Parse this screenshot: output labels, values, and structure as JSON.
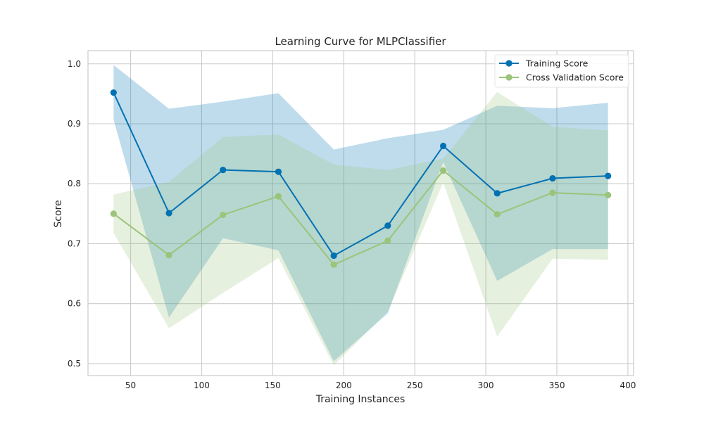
{
  "chart_data": {
    "type": "line",
    "title": "Learning Curve for MLPClassifier",
    "xlabel": "Training Instances",
    "ylabel": "Score",
    "xlim": [
      20,
      404
    ],
    "ylim": [
      0.48,
      1.022
    ],
    "xticks": [
      50,
      100,
      150,
      200,
      250,
      300,
      350,
      400
    ],
    "yticks": [
      0.5,
      0.6,
      0.7,
      0.8,
      0.9,
      1.0
    ],
    "grid": true,
    "legend_position": "top-right",
    "x": [
      38,
      77,
      115,
      154,
      193,
      231,
      270,
      308,
      347,
      386
    ],
    "series": [
      {
        "name": "Training Score",
        "color": "#0072b2",
        "values": [
          0.952,
          0.751,
          0.823,
          0.82,
          0.68,
          0.73,
          0.863,
          0.784,
          0.809,
          0.813
        ],
        "band_upper": [
          0.998,
          0.925,
          0.937,
          0.951,
          0.857,
          0.876,
          0.89,
          0.93,
          0.926,
          0.935
        ],
        "band_lower": [
          0.907,
          0.577,
          0.709,
          0.689,
          0.504,
          0.584,
          0.836,
          0.638,
          0.691,
          0.691
        ]
      },
      {
        "name": "Cross Validation Score",
        "color": "#9bc47a",
        "values": [
          0.75,
          0.681,
          0.748,
          0.779,
          0.665,
          0.705,
          0.822,
          0.749,
          0.785,
          0.781
        ],
        "band_upper": [
          0.782,
          0.803,
          0.878,
          0.882,
          0.832,
          0.823,
          0.842,
          0.953,
          0.895,
          0.889
        ],
        "band_lower": [
          0.718,
          0.559,
          0.618,
          0.676,
          0.497,
          0.587,
          0.802,
          0.545,
          0.675,
          0.673
        ]
      }
    ]
  }
}
